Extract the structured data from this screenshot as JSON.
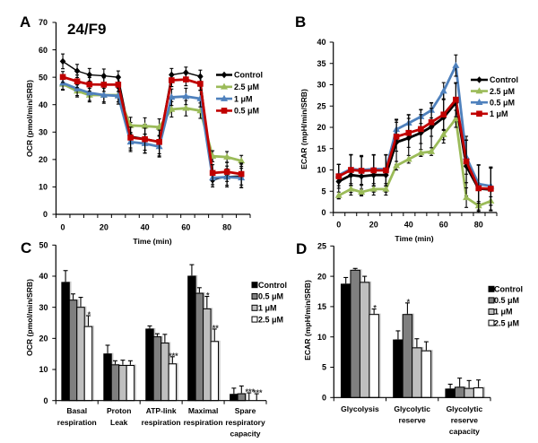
{
  "chart_data": [
    {
      "panel": "A",
      "type": "line",
      "title": "24/F9",
      "xlabel": "Time (min)",
      "ylabel": "OCR (pmol/min/SRB)",
      "xlim": [
        -3.3,
        91.3
      ],
      "ylim": [
        0,
        70
      ],
      "xticks": [
        0,
        20,
        40,
        60,
        80
      ],
      "yticks": [
        0,
        10,
        20,
        30,
        40,
        50,
        60,
        70
      ],
      "grid": false,
      "legend_position": "right",
      "x": [
        0,
        7,
        13,
        20,
        27,
        33,
        40,
        47,
        53,
        60,
        67,
        73,
        80,
        87
      ],
      "series": [
        {
          "name": "Control",
          "color": "#000000",
          "marker": "diamond",
          "values": [
            55.8,
            52.3,
            50.9,
            50.5,
            50.0,
            28.5,
            27.6,
            26.6,
            50.9,
            51.7,
            50.3,
            12.5,
            13.8,
            14.0
          ],
          "errors": [
            2.7,
            2.4,
            2.3,
            2.5,
            2.3,
            5.0,
            5.2,
            5.3,
            2.3,
            2.0,
            2.3,
            2.5,
            3.8,
            4.3
          ]
        },
        {
          "name": "2.5 μM",
          "color": "#9BBB59",
          "marker": "triangle",
          "values": [
            47.5,
            45.0,
            43.5,
            43.5,
            43.5,
            32.4,
            32.2,
            31.8,
            38.3,
            38.7,
            37.8,
            21.2,
            20.9,
            19.5
          ],
          "errors": [
            2.2,
            2.2,
            2.5,
            2.5,
            2.5,
            3.0,
            3.0,
            3.0,
            2.8,
            2.8,
            2.8,
            2.0,
            2.0,
            2.0
          ]
        },
        {
          "name": "1 μM",
          "color": "#4F81BD",
          "marker": "triangle",
          "values": [
            47.9,
            45.8,
            44.3,
            43.5,
            43.2,
            26.4,
            25.8,
            24.7,
            42.7,
            43.0,
            42.2,
            13.3,
            13.6,
            13.3
          ],
          "errors": [
            2.3,
            2.5,
            2.8,
            3.0,
            3.0,
            3.5,
            3.5,
            3.8,
            3.0,
            3.0,
            3.0,
            2.5,
            3.0,
            3.5
          ]
        },
        {
          "name": "0.5 μM",
          "color": "#C00000",
          "marker": "square",
          "values": [
            50.1,
            48.5,
            47.4,
            47.3,
            47.3,
            28.0,
            27.4,
            26.4,
            48.9,
            49.2,
            47.6,
            15.1,
            15.5,
            14.7
          ],
          "errors": [
            2.0,
            2.3,
            2.5,
            2.5,
            2.5,
            3.8,
            4.0,
            4.3,
            2.3,
            2.3,
            2.3,
            3.0,
            3.5,
            4.0
          ]
        }
      ]
    },
    {
      "panel": "B",
      "type": "line",
      "title": "",
      "xlabel": "Time (min)",
      "ylabel": "ECAR (mpH/min/SRB)",
      "xlim": [
        -3.1,
        90.4
      ],
      "ylim": [
        0,
        40
      ],
      "xticks": [
        0,
        20,
        40,
        60,
        80
      ],
      "yticks": [
        0,
        5,
        10,
        15,
        20,
        25,
        30,
        35,
        40
      ],
      "grid": false,
      "legend_position": "right",
      "x": [
        0,
        7,
        13,
        20,
        27,
        33,
        40,
        47,
        53,
        60,
        67,
        73,
        80,
        87
      ],
      "series": [
        {
          "name": "Control",
          "color": "#000000",
          "marker": "diamond",
          "values": [
            7.3,
            8.8,
            8.5,
            8.8,
            8.8,
            16.5,
            17.5,
            18.7,
            20.1,
            22.3,
            25.8,
            10.9,
            5.6,
            5.4
          ],
          "errors": [
            4.0,
            4.7,
            4.6,
            4.7,
            4.7,
            5.2,
            5.4,
            5.5,
            5.6,
            6.0,
            4.5,
            7.0,
            5.6,
            5.0
          ]
        },
        {
          "name": "2.5 μM",
          "color": "#9BBB59",
          "marker": "triangle",
          "values": [
            4.0,
            5.5,
            4.8,
            5.5,
            5.5,
            11.0,
            12.5,
            14.0,
            14.3,
            18.3,
            22.0,
            3.5,
            1.6,
            2.7
          ],
          "errors": [
            0.8,
            0.8,
            0.7,
            0.7,
            0.7,
            1.0,
            0.9,
            0.8,
            0.9,
            1.2,
            2.0,
            2.3,
            1.0,
            1.0
          ]
        },
        {
          "name": "0.5 μM",
          "color": "#4F81BD",
          "marker": "triangle",
          "values": [
            8.8,
            10.2,
            10.0,
            10.2,
            10.2,
            19.5,
            21.0,
            22.5,
            24.0,
            28.5,
            34.5,
            13.0,
            6.7,
            6.2
          ],
          "errors": [
            2.5,
            3.4,
            3.4,
            3.4,
            3.4,
            2.4,
            2.0,
            1.6,
            1.8,
            2.0,
            2.5,
            4.0,
            4.5,
            4.5
          ]
        },
        {
          "name": "1 μM",
          "color": "#C00000",
          "marker": "square",
          "values": [
            8.5,
            10.0,
            9.8,
            9.9,
            9.9,
            17.8,
            18.7,
            19.6,
            21.2,
            23.0,
            26.5,
            12.0,
            5.7,
            5.6
          ],
          "errors": [
            2.8,
            3.6,
            3.4,
            3.6,
            3.6,
            3.4,
            3.4,
            3.4,
            3.3,
            3.7,
            4.0,
            5.0,
            5.4,
            5.0
          ]
        }
      ]
    },
    {
      "panel": "C",
      "type": "bar",
      "title": "",
      "xlabel": "",
      "ylabel": "OCR (pmol/min/SRB)",
      "ylim": [
        0,
        50
      ],
      "yticks": [
        0,
        10,
        20,
        30,
        40,
        50
      ],
      "grid": false,
      "legend_position": "right",
      "categories": [
        [
          "Basal",
          "respiration"
        ],
        [
          "Proton",
          "Leak"
        ],
        [
          "ATP-link",
          "respiration"
        ],
        [
          "Maximal",
          "respiration"
        ],
        [
          "Spare",
          "respiratory",
          "capacity"
        ]
      ],
      "series": [
        {
          "name": "Control",
          "color": "#000000",
          "values": [
            38.0,
            15.0,
            23.0,
            40.0,
            2.0
          ],
          "errors": [
            3.8,
            2.8,
            1.0,
            3.7,
            2.0
          ]
        },
        {
          "name": "0.5 μM",
          "color": "#7F7F7F",
          "values": [
            32.3,
            11.5,
            20.5,
            34.5,
            2.2
          ],
          "errors": [
            2.0,
            1.3,
            1.0,
            1.8,
            2.5
          ]
        },
        {
          "name": "1 μM",
          "color": "#BFBFBF",
          "values": [
            30.0,
            11.3,
            18.5,
            29.5,
            0.0
          ],
          "errors": [
            3.2,
            1.7,
            2.8,
            4.0,
            2.5
          ]
        },
        {
          "name": "2.5 μM",
          "color": "#FFFFFF",
          "values": [
            23.8,
            11.3,
            11.8,
            19.0,
            0.0
          ],
          "errors": [
            3.5,
            1.5,
            2.3,
            4.0,
            2.2
          ]
        }
      ],
      "significance": [
        {
          "category_index": 0,
          "series_index": 3,
          "label": "*"
        },
        {
          "category_index": 2,
          "series_index": 3,
          "label": "***"
        },
        {
          "category_index": 3,
          "series_index": 2,
          "label": "*"
        },
        {
          "category_index": 3,
          "series_index": 3,
          "label": "**"
        },
        {
          "category_index": 4,
          "series_index": 2,
          "label": "***"
        },
        {
          "category_index": 4,
          "series_index": 3,
          "label": "***"
        }
      ]
    },
    {
      "panel": "D",
      "type": "bar",
      "title": "",
      "xlabel": "",
      "ylabel": "ECAR (mpH/min/SRB)",
      "ylim": [
        0,
        25
      ],
      "yticks": [
        0,
        5,
        10,
        15,
        20,
        25
      ],
      "grid": false,
      "legend_position": "right",
      "categories": [
        [
          "Glycolysis"
        ],
        [
          "Glycolytic",
          "reserve"
        ],
        [
          "Glycolytic",
          "reserve",
          "capacity"
        ]
      ],
      "series": [
        {
          "name": "Control",
          "color": "#000000",
          "values": [
            18.7,
            9.5,
            1.4
          ],
          "errors": [
            1.1,
            1.5,
            0.8
          ]
        },
        {
          "name": "0.5 μM",
          "color": "#7F7F7F",
          "values": [
            21.0,
            13.7,
            1.7
          ],
          "errors": [
            0.3,
            1.9,
            1.5
          ]
        },
        {
          "name": "1 μM",
          "color": "#BFBFBF",
          "values": [
            19.0,
            8.2,
            1.5
          ],
          "errors": [
            1.0,
            1.5,
            1.3
          ]
        },
        {
          "name": "2.5 μM",
          "color": "#FFFFFF",
          "values": [
            13.7,
            7.7,
            1.6
          ],
          "errors": [
            0.9,
            1.5,
            1.3
          ]
        }
      ],
      "significance": [
        {
          "category_index": 0,
          "series_index": 3,
          "label": "*"
        },
        {
          "category_index": 1,
          "series_index": 1,
          "label": "*"
        }
      ]
    }
  ]
}
